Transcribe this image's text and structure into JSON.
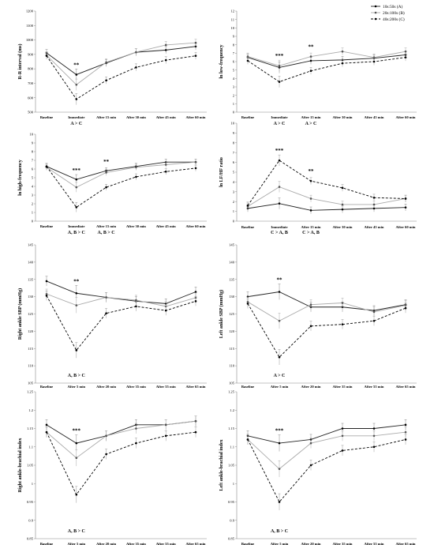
{
  "legend": [
    {
      "label": "10s:50s (A)",
      "style": "dark-solid"
    },
    {
      "label": "20s:100s (B)",
      "style": "light-solid"
    },
    {
      "label": "40s:200s (C)",
      "style": "dashed"
    }
  ],
  "chart_data": [
    {
      "type": "line",
      "ylabel": "R-R interval (ms)",
      "categories": [
        "Baseline",
        "Immediate",
        "After 15 min",
        "After 30 min",
        "After 45 min",
        "After 60 min"
      ],
      "yticks": [
        "500",
        "600",
        "700",
        "800",
        "900",
        "1000",
        "1100",
        "1200"
      ],
      "ylim": [
        500,
        1200
      ],
      "series": [
        {
          "name": "10s:50s (A)",
          "values": [
            910,
            760,
            840,
            915,
            930,
            955
          ]
        },
        {
          "name": "20s:100s (B)",
          "values": [
            895,
            690,
            845,
            915,
            965,
            980
          ]
        },
        {
          "name": "40s:200s (C)",
          "values": [
            890,
            590,
            720,
            810,
            860,
            890
          ]
        }
      ],
      "star": {
        "text": "**",
        "at": 1
      },
      "annotations": [
        {
          "text": "A > C",
          "at": 1
        }
      ]
    },
    {
      "type": "line",
      "ylabel": "ln low-frequency",
      "categories": [
        "Baseline",
        "Immediate",
        "After 15 min",
        "After 30 min",
        "After 45 min",
        "After 60 min"
      ],
      "yticks": [
        "0",
        "1",
        "2",
        "3",
        "4",
        "5",
        "6",
        "7",
        "8",
        "9",
        "10",
        "11",
        "12"
      ],
      "ylim": [
        0,
        12
      ],
      "series": [
        {
          "name": "10s:50s (A)",
          "values": [
            6.5,
            5.3,
            6.1,
            6.2,
            6.4,
            6.8
          ]
        },
        {
          "name": "20s:100s (B)",
          "values": [
            6.6,
            5.5,
            6.6,
            7.2,
            6.5,
            7.2
          ]
        },
        {
          "name": "40s:200s (C)",
          "values": [
            6.1,
            3.6,
            4.9,
            5.8,
            6.0,
            6.5
          ]
        }
      ],
      "star": {
        "text": "***",
        "at": 1
      },
      "star2": {
        "text": "**",
        "at": 2
      },
      "annotations": [
        {
          "text": "A > C",
          "at": 1
        },
        {
          "text": "A > C",
          "at": 2
        }
      ]
    },
    {
      "type": "line",
      "ylabel": "ln high-frequency",
      "categories": [
        "Baseline",
        "Immediate",
        "After 15 min",
        "After 30 min",
        "After 45 min",
        "After 60 min"
      ],
      "yticks": [
        "0",
        "1",
        "2",
        "3",
        "4",
        "5",
        "6",
        "7",
        "8",
        "9",
        "10"
      ],
      "ylim": [
        0,
        10
      ],
      "series": [
        {
          "name": "10s:50s (A)",
          "values": [
            6.3,
            4.8,
            5.8,
            6.3,
            6.8,
            6.8
          ]
        },
        {
          "name": "20s:100s (B)",
          "values": [
            6.2,
            3.9,
            5.6,
            6.2,
            6.5,
            6.8
          ]
        },
        {
          "name": "40s:200s (C)",
          "values": [
            6.3,
            1.6,
            3.9,
            5.1,
            5.7,
            6.1
          ]
        }
      ],
      "star": {
        "text": "***",
        "at": 1
      },
      "star2": {
        "text": "**",
        "at": 2
      },
      "annotations": [
        {
          "text": "A, B > C",
          "at": 1
        },
        {
          "text": "A, B > C",
          "at": 2
        }
      ]
    },
    {
      "type": "line",
      "ylabel": "ln LF/HF ratio",
      "categories": [
        "Baseline",
        "Immediate",
        "After 15 min",
        "After 30 min",
        "After 45 min",
        "After 60 min"
      ],
      "yticks": [
        "0",
        "1",
        "2",
        "3",
        "4",
        "5",
        "6",
        "7",
        "8",
        "9",
        "10"
      ],
      "ylim": [
        0,
        10
      ],
      "series": [
        {
          "name": "10s:50s (A)",
          "values": [
            1.3,
            1.8,
            1.1,
            1.2,
            1.3,
            1.4
          ]
        },
        {
          "name": "20s:100s (B)",
          "values": [
            1.5,
            3.5,
            2.3,
            1.7,
            1.7,
            2.3
          ]
        },
        {
          "name": "40s:200s (C)",
          "values": [
            1.6,
            6.2,
            4.1,
            3.4,
            2.4,
            2.3
          ]
        }
      ],
      "star": {
        "text": "***",
        "at": 1
      },
      "star2": {
        "text": "**",
        "at": 2
      },
      "annotations": [
        {
          "text": "C > A, B",
          "at": 1
        },
        {
          "text": "C > A, B",
          "at": 2
        }
      ]
    },
    {
      "type": "line",
      "ylabel": "Right ankle SBP (mmHg)",
      "categories": [
        "Baseline",
        "After 5 min",
        "After 20 min",
        "After 35 min",
        "After 55 min",
        "After 65 min"
      ],
      "yticks": [
        "105",
        "110",
        "115",
        "120",
        "125",
        "130",
        "135",
        "140",
        "145"
      ],
      "ylim": [
        105,
        145
      ],
      "series": [
        {
          "name": "10s:50s (A)",
          "values": [
            134.5,
            131.0,
            129.8,
            128.7,
            128.0,
            131.4
          ]
        },
        {
          "name": "20s:100s (B)",
          "values": [
            130.8,
            127.5,
            129.8,
            129.0,
            127.2,
            129.7
          ]
        },
        {
          "name": "40s:200s (C)",
          "values": [
            130.3,
            114.5,
            125.2,
            127.2,
            126.0,
            128.7
          ]
        }
      ],
      "star": {
        "text": "**",
        "at": 1
      },
      "annotations": [
        {
          "text": "A, B > C",
          "at": 1
        }
      ]
    },
    {
      "type": "line",
      "ylabel": "Left ankle SBP (mmHg)",
      "categories": [
        "Baseline",
        "After 5 min",
        "After 20 min",
        "After 35 min",
        "After 55 min",
        "After 65 min"
      ],
      "yticks": [
        "105",
        "110",
        "115",
        "120",
        "125",
        "130",
        "135",
        "140",
        "145"
      ],
      "ylim": [
        105,
        145
      ],
      "series": [
        {
          "name": "10s:50s (A)",
          "values": [
            130.0,
            131.4,
            127.0,
            127.0,
            126.0,
            127.7
          ]
        },
        {
          "name": "20s:100s (B)",
          "values": [
            128.5,
            123.0,
            127.7,
            128.2,
            125.6,
            127.5
          ]
        },
        {
          "name": "40s:200s (C)",
          "values": [
            128.0,
            112.5,
            121.5,
            122.0,
            123.0,
            126.7
          ]
        }
      ],
      "star": {
        "text": "**",
        "at": 1
      },
      "annotations": [
        {
          "text": "A > C",
          "at": 1
        }
      ]
    },
    {
      "type": "line",
      "ylabel": "Right ankle-brachial index",
      "categories": [
        "Baseline",
        "After 5 min",
        "After 20 min",
        "After 35 min",
        "After 55 min",
        "After 65 min"
      ],
      "yticks": [
        "0.85",
        "0.9",
        "0.95",
        "1",
        "1.05",
        "1.1",
        "1.15",
        "1.2",
        "1.25"
      ],
      "ylim": [
        0.85,
        1.25
      ],
      "series": [
        {
          "name": "10s:50s (A)",
          "values": [
            1.16,
            1.11,
            1.13,
            1.16,
            1.16,
            1.17
          ]
        },
        {
          "name": "20s:100s (B)",
          "values": [
            1.14,
            1.07,
            1.13,
            1.15,
            1.16,
            1.17
          ]
        },
        {
          "name": "40s:200s (C)",
          "values": [
            1.14,
            0.97,
            1.08,
            1.11,
            1.13,
            1.14
          ]
        }
      ],
      "star": {
        "text": "***",
        "at": 1
      },
      "annotations": [
        {
          "text": "A, B > C",
          "at": 1
        }
      ]
    },
    {
      "type": "line",
      "ylabel": "Left ankle-brachial index",
      "categories": [
        "Baseline",
        "After 5 min",
        "After 20 min",
        "After 35 min",
        "After 55 min",
        "After 65 min"
      ],
      "yticks": [
        "0.85",
        "0.9",
        "0.95",
        "1",
        "1.05",
        "1.1",
        "1.15",
        "1.2",
        "1.25"
      ],
      "ylim": [
        0.85,
        1.25
      ],
      "series": [
        {
          "name": "10s:50s (A)",
          "values": [
            1.13,
            1.11,
            1.12,
            1.15,
            1.15,
            1.16
          ]
        },
        {
          "name": "20s:100s (B)",
          "values": [
            1.12,
            1.04,
            1.11,
            1.13,
            1.13,
            1.14
          ]
        },
        {
          "name": "40s:200s (C)",
          "values": [
            1.12,
            0.95,
            1.05,
            1.09,
            1.1,
            1.12
          ]
        }
      ],
      "star": {
        "text": "***",
        "at": 1
      },
      "annotations": [
        {
          "text": "A, B > C",
          "at": 1
        }
      ]
    }
  ]
}
